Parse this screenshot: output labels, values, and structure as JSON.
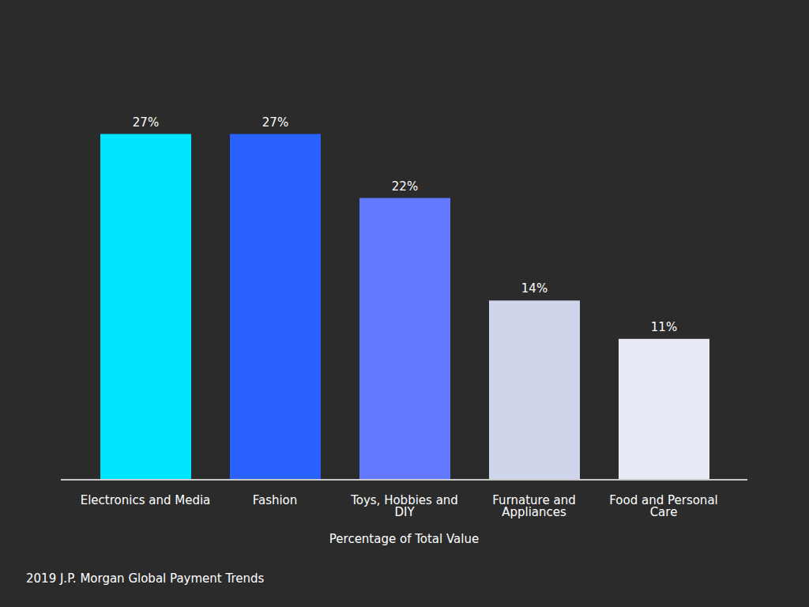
{
  "chart_data": {
    "type": "bar",
    "x_label": "Percentage of Total Value",
    "source": "2019 J.P. Morgan Global Payment Trends",
    "categories": [
      "Electronics and Media",
      "Fashion",
      "Toys, Hobbies and DIY",
      "Furnature and Appliances",
      "Food and Personal Care"
    ],
    "values": [
      27,
      27,
      22,
      14,
      11
    ],
    "value_labels": [
      "27%",
      "27%",
      "22%",
      "14%",
      "11%"
    ],
    "colors": [
      "#00e5ff",
      "#2962ff",
      "#6379ff",
      "#cfd5ea",
      "#e8eaf6"
    ],
    "ylim": [
      0,
      30
    ],
    "data_labels": true,
    "tick_labels": "x",
    "grid": false
  }
}
